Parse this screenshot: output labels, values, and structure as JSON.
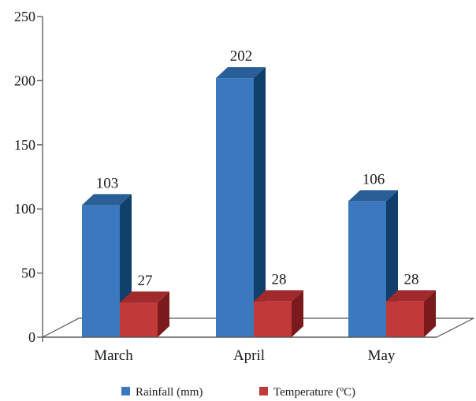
{
  "chart_data": {
    "type": "bar",
    "categories": [
      "March",
      "April",
      "May"
    ],
    "series": [
      {
        "name": "Rainfall (mm)",
        "values": [
          103,
          202,
          106
        ],
        "color": "#3c78bd",
        "side_color": "#0f3f6a",
        "top_color": "#2a5e96"
      },
      {
        "name": "Temperature (ºC)",
        "values": [
          27,
          28,
          28
        ],
        "color": "#c2393a",
        "side_color": "#7a1a1c",
        "top_color": "#a02a2c"
      }
    ],
    "data_labels": [
      [
        "103",
        "202",
        "106"
      ],
      [
        "27",
        "28",
        "28"
      ]
    ],
    "yticks": [
      "0",
      "50",
      "100",
      "150",
      "200",
      "250"
    ],
    "ylim": [
      0,
      250
    ],
    "title": "",
    "xlabel": "",
    "ylabel": "",
    "legend_position": "bottom",
    "grid": false
  }
}
